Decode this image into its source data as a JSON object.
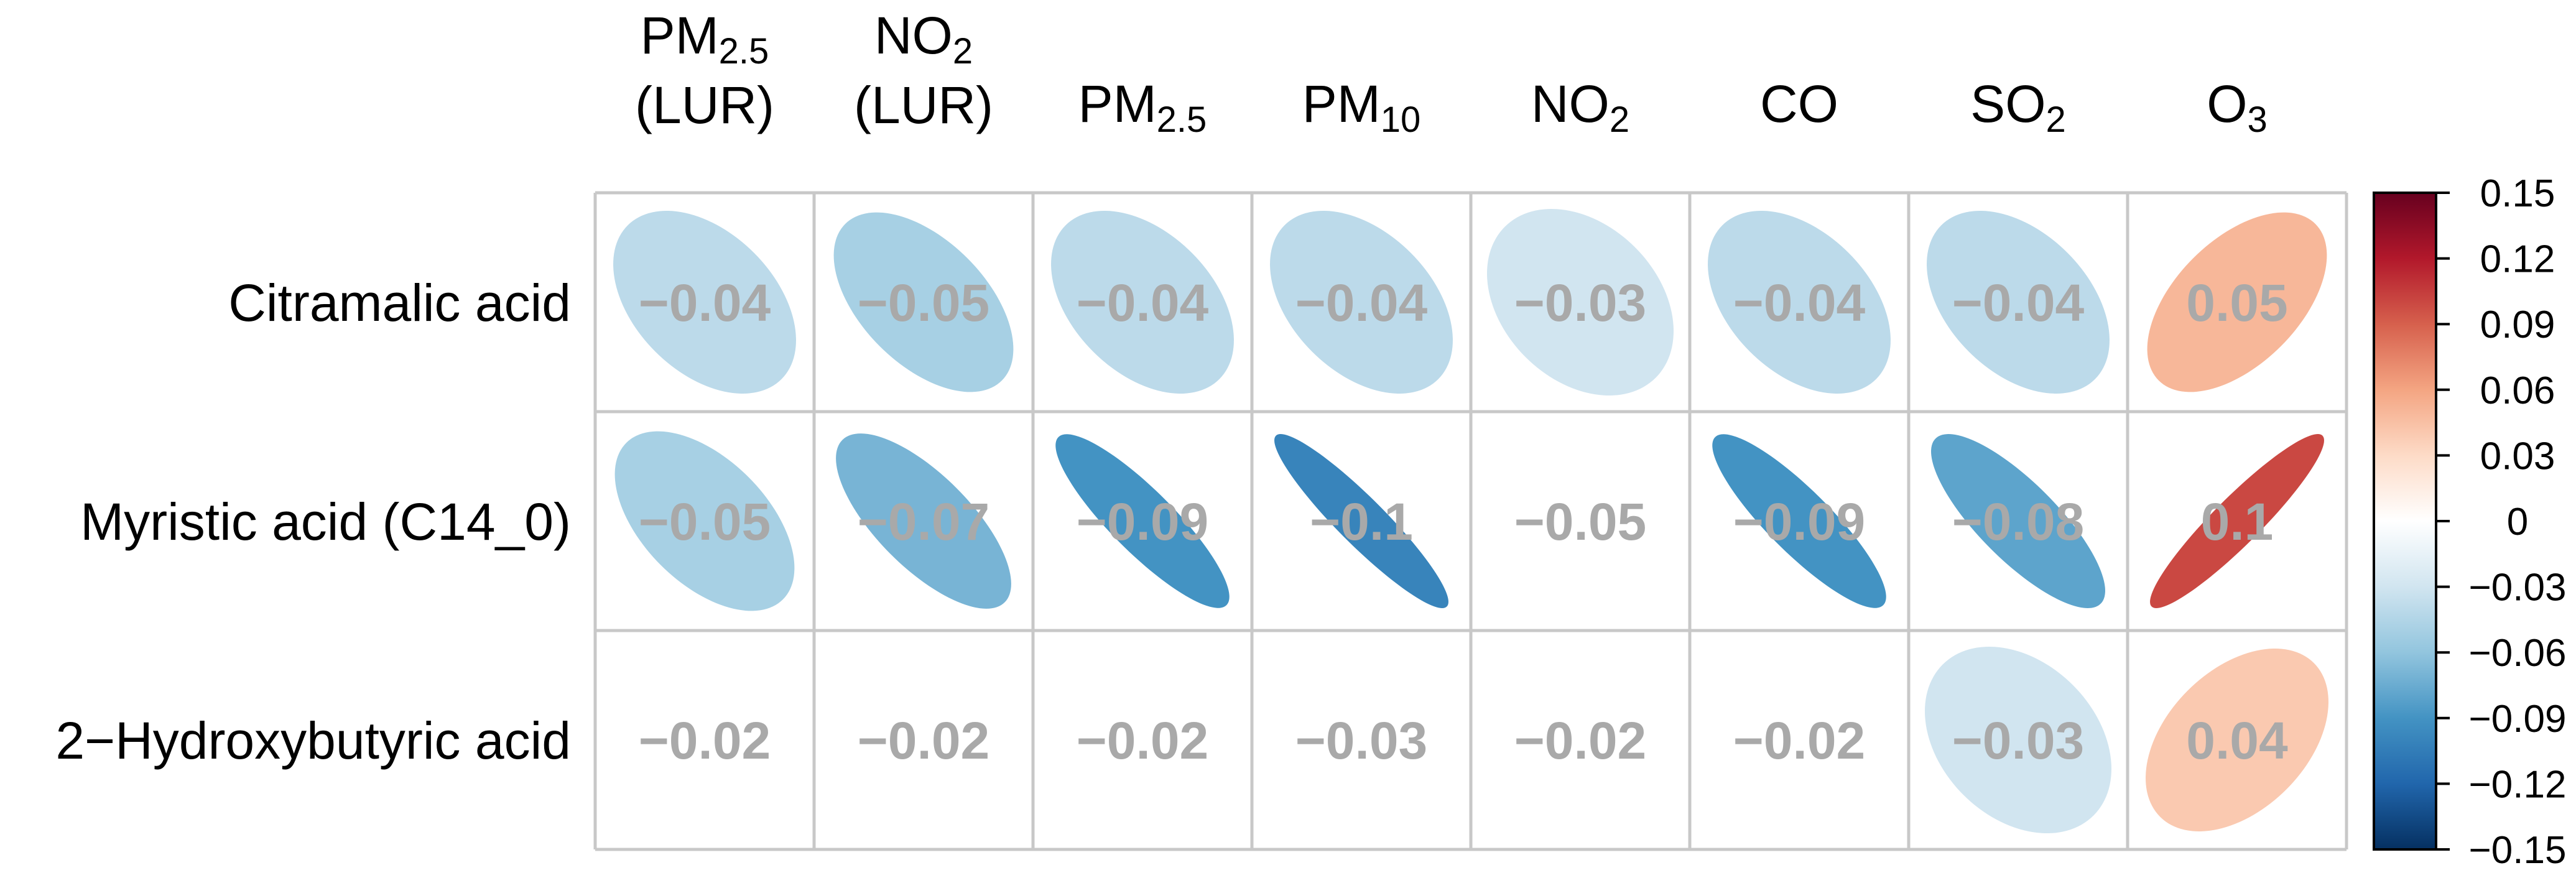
{
  "chart_data": {
    "type": "heatmap",
    "style": "correlation-ellipse",
    "columns": [
      {
        "main": "PM",
        "sub": "2.5",
        "second_line": "(LUR)"
      },
      {
        "main": "NO",
        "sub": "2",
        "second_line": "(LUR)"
      },
      {
        "main": "PM",
        "sub": "2.5"
      },
      {
        "main": "PM",
        "sub": "10"
      },
      {
        "main": "NO",
        "sub": "2"
      },
      {
        "main": "CO"
      },
      {
        "main": "SO",
        "sub": "2"
      },
      {
        "main": "O",
        "sub": "3"
      }
    ],
    "rows": [
      "Citramalic acid",
      "Myristic acid (C14_0)",
      "2−Hydroxybutyric acid"
    ],
    "values": [
      [
        -0.04,
        -0.05,
        -0.04,
        -0.04,
        -0.03,
        -0.04,
        -0.04,
        0.05
      ],
      [
        -0.05,
        -0.07,
        -0.09,
        -0.1,
        -0.05,
        -0.09,
        -0.08,
        0.1
      ],
      [
        -0.02,
        -0.02,
        -0.02,
        -0.03,
        -0.02,
        -0.02,
        -0.03,
        0.04
      ]
    ],
    "value_labels": [
      [
        "−0.04",
        "−0.05",
        "−0.04",
        "−0.04",
        "−0.03",
        "−0.04",
        "−0.04",
        "0.05"
      ],
      [
        "−0.05",
        "−0.07",
        "−0.09",
        "−0.1",
        "−0.05",
        "−0.09",
        "−0.08",
        "0.1"
      ],
      [
        "−0.02",
        "−0.02",
        "−0.02",
        "−0.03",
        "−0.02",
        "−0.02",
        "−0.03",
        "0.04"
      ]
    ],
    "shown": [
      [
        true,
        true,
        true,
        true,
        true,
        true,
        true,
        true
      ],
      [
        true,
        true,
        true,
        true,
        false,
        true,
        true,
        true
      ],
      [
        false,
        false,
        false,
        false,
        false,
        false,
        true,
        true
      ]
    ],
    "value_label_color": "#A9A9A9",
    "grid_color": "#C8C8C8",
    "colorbar": {
      "range": [
        -0.15,
        0.15
      ],
      "ticks": [
        0.15,
        0.12,
        0.09,
        0.06,
        0.03,
        0,
        -0.03,
        -0.06,
        -0.09,
        -0.12,
        -0.15
      ],
      "tick_labels": [
        "0.15",
        "0.12",
        "0.09",
        "0.06",
        "0.03",
        "0",
        "−0.03",
        "−0.06",
        "−0.09",
        "−0.12",
        "−0.15"
      ],
      "placement": "right",
      "stops": [
        {
          "v": -1.0,
          "color": "#053061"
        },
        {
          "v": -0.8,
          "color": "#2166AC"
        },
        {
          "v": -0.6,
          "color": "#4393C3"
        },
        {
          "v": -0.4,
          "color": "#92C5DE"
        },
        {
          "v": -0.2,
          "color": "#D1E5F0"
        },
        {
          "v": 0.0,
          "color": "#FFFFFF"
        },
        {
          "v": 0.2,
          "color": "#FDDBC7"
        },
        {
          "v": 0.4,
          "color": "#F4A582"
        },
        {
          "v": 0.6,
          "color": "#D6604D"
        },
        {
          "v": 0.8,
          "color": "#B2182B"
        },
        {
          "v": 1.0,
          "color": "#67001F"
        }
      ]
    }
  }
}
